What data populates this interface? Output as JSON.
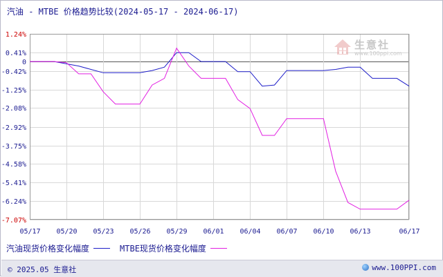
{
  "title": "汽油 - MTBE 价格趋势比较(2024-05-17 - 2024-06-17)",
  "footer": {
    "copyright": "© 2025.05 生意社",
    "url": "www.100PPI.com"
  },
  "watermark": {
    "text": "生意社",
    "url": "www.100ppi.com"
  },
  "colors": {
    "series1": "#1c1cc8",
    "series2": "#e21ee2",
    "grid": "#d8d8d8",
    "zero": "#555555",
    "text": "#1a1a90",
    "red_label": "#cc0000"
  },
  "chart_data": {
    "type": "line",
    "title": "汽油 - MTBE 价格趋势比较(2024-05-17 - 2024-06-17)",
    "x": [
      "05/17",
      "05/18",
      "05/19",
      "05/20",
      "05/21",
      "05/22",
      "05/23",
      "05/24",
      "05/25",
      "05/26",
      "05/27",
      "05/28",
      "05/29",
      "05/30",
      "05/31",
      "06/01",
      "06/02",
      "06/03",
      "06/04",
      "06/05",
      "06/06",
      "06/07",
      "06/08",
      "06/09",
      "06/10",
      "06/11",
      "06/12",
      "06/13",
      "06/14",
      "06/15",
      "06/16",
      "06/17"
    ],
    "x_tick_labels": [
      "05/17",
      "05/20",
      "05/23",
      "05/26",
      "05/29",
      "06/01",
      "06/04",
      "06/07",
      "06/10",
      "06/13",
      "06/17"
    ],
    "y_tick_labels": [
      "1.24%",
      "0.41%",
      "0",
      "-0.42%",
      "-1.25%",
      "-2.08%",
      "-2.92%",
      "-3.75%",
      "-4.58%",
      "-5.41%",
      "-6.24%",
      "-7.07%"
    ],
    "y_ticks": [
      1.24,
      0.41,
      0,
      -0.42,
      -1.25,
      -2.08,
      -2.92,
      -3.75,
      -4.58,
      -5.41,
      -6.24,
      -7.07
    ],
    "y_red_ticks": [
      1.24,
      -7.07
    ],
    "ylim": [
      -7.07,
      1.24
    ],
    "ylabel": "",
    "xlabel": "",
    "grid": true,
    "legend_position": "bottom",
    "series": [
      {
        "name": "汽油现货价格变化幅度",
        "color": "#1c1cc8",
        "values": [
          0,
          0,
          0,
          -0.1,
          -0.2,
          -0.35,
          -0.5,
          -0.5,
          -0.5,
          -0.5,
          -0.4,
          -0.25,
          0.4,
          0.4,
          0,
          0,
          0,
          -0.45,
          -0.45,
          -1.1,
          -1.05,
          -0.4,
          -0.4,
          -0.4,
          -0.4,
          -0.35,
          -0.25,
          -0.25,
          -0.75,
          -0.75,
          -0.75,
          -1.1
        ]
      },
      {
        "name": "MTBE现货价格变化幅度",
        "color": "#e21ee2",
        "values": [
          0,
          0,
          0,
          -0.05,
          -0.55,
          -0.55,
          -1.35,
          -1.9,
          -1.9,
          -1.9,
          -1.05,
          -0.75,
          0.6,
          -0.2,
          -0.75,
          -0.75,
          -0.75,
          -1.7,
          -2.1,
          -3.3,
          -3.3,
          -2.55,
          -2.55,
          -2.55,
          -2.55,
          -4.9,
          -6.3,
          -6.6,
          -6.6,
          -6.6,
          -6.6,
          -6.2
        ]
      }
    ]
  }
}
